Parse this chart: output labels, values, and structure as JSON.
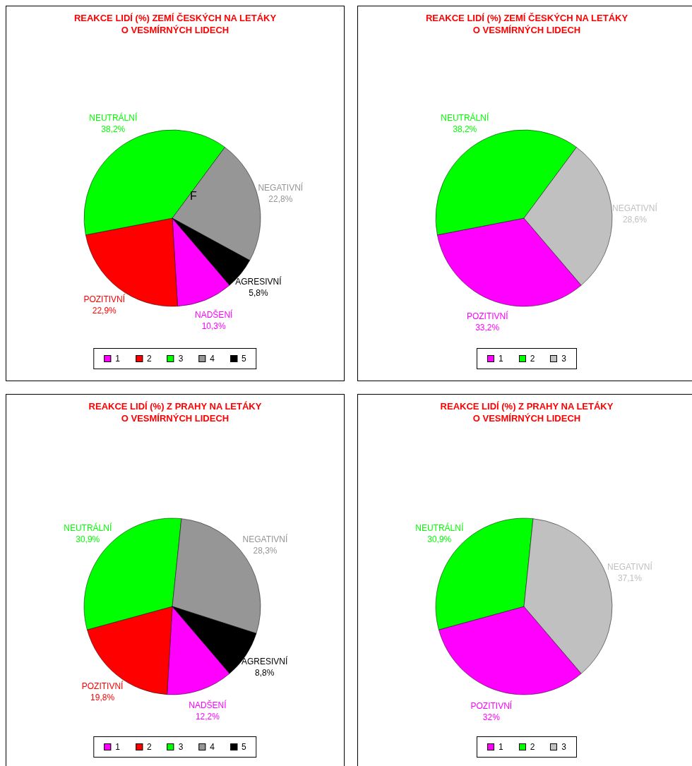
{
  "chart_data": [
    {
      "type": "pie",
      "title": "REAKCE LIDÍ (%) ZEMÍ ČESKÝCH NA LETÁKY\nO VESMÍRNÝCH LIDECH",
      "categories": [
        "1",
        "2",
        "3",
        "4",
        "5"
      ],
      "values": [
        10.3,
        22.9,
        38.2,
        22.8,
        5.8
      ],
      "colors": [
        "#ff00ff",
        "#ff0000",
        "#00ff00",
        "#969696",
        "#000000"
      ],
      "value_labels": [
        "NADŠENÍ\n10,3%",
        "POZITIVNÍ\n22,9%",
        "NEUTRÁLNÍ\n38,2%",
        "NEGATIVNÍ\n22,8%",
        "AGRESIVNÍ\n5,8%"
      ],
      "legend": "bottom",
      "annotations": [
        "F"
      ]
    },
    {
      "type": "pie",
      "title": "REAKCE LIDÍ (%) ZEMÍ ČESKÝCH NA LETÁKY\nO VESMÍRNÝCH LIDECH",
      "categories": [
        "1",
        "2",
        "3"
      ],
      "values": [
        33.2,
        38.2,
        28.6
      ],
      "colors": [
        "#ff00ff",
        "#00ff00",
        "#c0c0c0"
      ],
      "value_labels": [
        "POZITIVNÍ\n33,2%",
        "NEUTRÁLNÍ\n38,2%",
        "NEGATIVNÍ\n28,6%"
      ],
      "legend": "bottom"
    },
    {
      "type": "pie",
      "title": "REAKCE LIDÍ (%) Z PRAHY NA LETÁKY\nO VESMÍRNÝCH LIDECH",
      "categories": [
        "1",
        "2",
        "3",
        "4",
        "5"
      ],
      "values": [
        12.2,
        19.8,
        30.9,
        28.3,
        8.8
      ],
      "colors": [
        "#ff00ff",
        "#ff0000",
        "#00ff00",
        "#969696",
        "#000000"
      ],
      "value_labels": [
        "NADŠENÍ\n12,2%",
        "POZITIVNÍ\n19,8%",
        "NEUTRÁLNÍ\n30,9%",
        "NEGATIVNÍ\n28,3%",
        "AGRESIVNÍ\n8,8%"
      ],
      "legend": "bottom"
    },
    {
      "type": "pie",
      "title": "REAKCE LIDÍ (%) Z PRAHY NA LETÁKY\nO VESMÍRNÝCH LIDECH",
      "categories": [
        "1",
        "2",
        "3"
      ],
      "values": [
        32,
        30.9,
        37.1
      ],
      "colors": [
        "#ff00ff",
        "#00ff00",
        "#c0c0c0"
      ],
      "value_labels": [
        "POZITIVNÍ\n32%",
        "NEUTRÁLNÍ\n30,9%",
        "NEGATIVNÍ\n37,1%"
      ],
      "legend": "bottom"
    }
  ]
}
